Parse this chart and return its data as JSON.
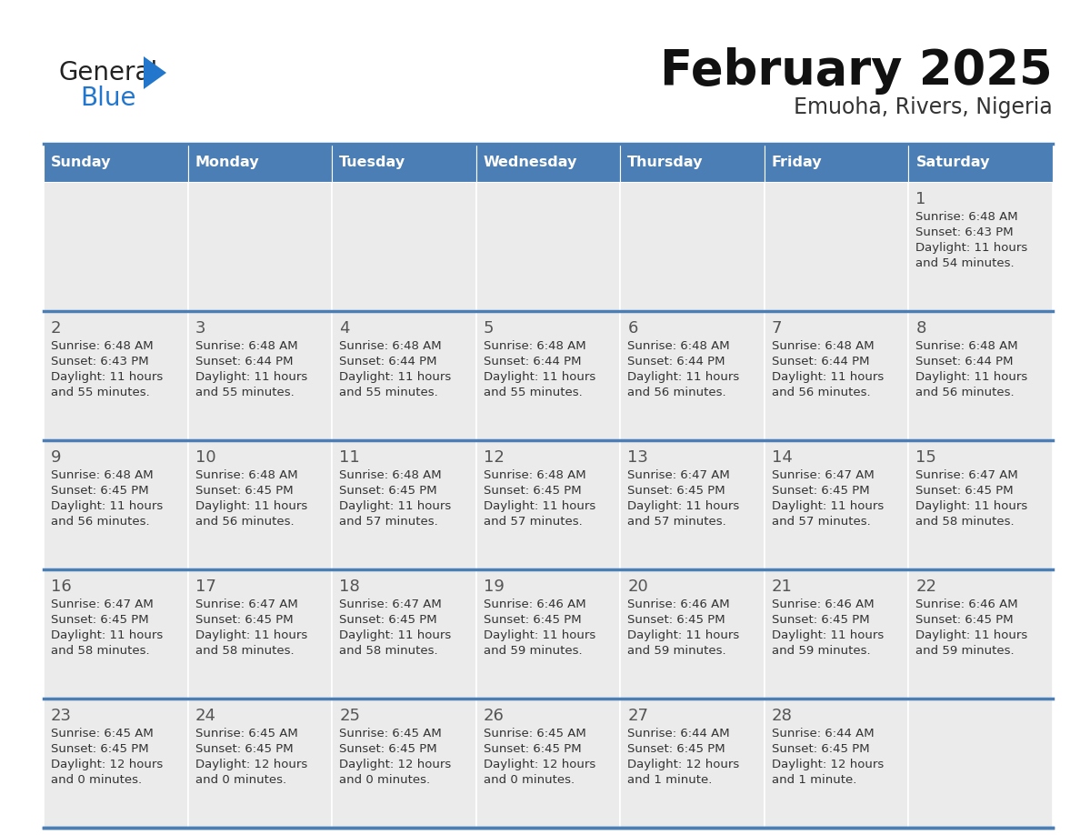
{
  "title": "February 2025",
  "subtitle": "Emuoha, Rivers, Nigeria",
  "days_of_week": [
    "Sunday",
    "Monday",
    "Tuesday",
    "Wednesday",
    "Thursday",
    "Friday",
    "Saturday"
  ],
  "header_bg": "#4a7eb5",
  "header_text": "#ffffff",
  "cell_bg": "#ebebeb",
  "day_number_color": "#555555",
  "text_color": "#333333",
  "line_color": "#4a7eb5",
  "logo_general_color": "#222222",
  "logo_blue_color": "#2277cc",
  "logo_triangle_color": "#2277cc",
  "title_color": "#111111",
  "subtitle_color": "#333333",
  "calendar_data": [
    [
      null,
      null,
      null,
      null,
      null,
      null,
      {
        "day": 1,
        "sunrise": "6:48 AM",
        "sunset": "6:43 PM",
        "daylight": "11 hours",
        "daylight2": "and 54 minutes."
      }
    ],
    [
      {
        "day": 2,
        "sunrise": "6:48 AM",
        "sunset": "6:43 PM",
        "daylight": "11 hours",
        "daylight2": "and 55 minutes."
      },
      {
        "day": 3,
        "sunrise": "6:48 AM",
        "sunset": "6:44 PM",
        "daylight": "11 hours",
        "daylight2": "and 55 minutes."
      },
      {
        "day": 4,
        "sunrise": "6:48 AM",
        "sunset": "6:44 PM",
        "daylight": "11 hours",
        "daylight2": "and 55 minutes."
      },
      {
        "day": 5,
        "sunrise": "6:48 AM",
        "sunset": "6:44 PM",
        "daylight": "11 hours",
        "daylight2": "and 55 minutes."
      },
      {
        "day": 6,
        "sunrise": "6:48 AM",
        "sunset": "6:44 PM",
        "daylight": "11 hours",
        "daylight2": "and 56 minutes."
      },
      {
        "day": 7,
        "sunrise": "6:48 AM",
        "sunset": "6:44 PM",
        "daylight": "11 hours",
        "daylight2": "and 56 minutes."
      },
      {
        "day": 8,
        "sunrise": "6:48 AM",
        "sunset": "6:44 PM",
        "daylight": "11 hours",
        "daylight2": "and 56 minutes."
      }
    ],
    [
      {
        "day": 9,
        "sunrise": "6:48 AM",
        "sunset": "6:45 PM",
        "daylight": "11 hours",
        "daylight2": "and 56 minutes."
      },
      {
        "day": 10,
        "sunrise": "6:48 AM",
        "sunset": "6:45 PM",
        "daylight": "11 hours",
        "daylight2": "and 56 minutes."
      },
      {
        "day": 11,
        "sunrise": "6:48 AM",
        "sunset": "6:45 PM",
        "daylight": "11 hours",
        "daylight2": "and 57 minutes."
      },
      {
        "day": 12,
        "sunrise": "6:48 AM",
        "sunset": "6:45 PM",
        "daylight": "11 hours",
        "daylight2": "and 57 minutes."
      },
      {
        "day": 13,
        "sunrise": "6:47 AM",
        "sunset": "6:45 PM",
        "daylight": "11 hours",
        "daylight2": "and 57 minutes."
      },
      {
        "day": 14,
        "sunrise": "6:47 AM",
        "sunset": "6:45 PM",
        "daylight": "11 hours",
        "daylight2": "and 57 minutes."
      },
      {
        "day": 15,
        "sunrise": "6:47 AM",
        "sunset": "6:45 PM",
        "daylight": "11 hours",
        "daylight2": "and 58 minutes."
      }
    ],
    [
      {
        "day": 16,
        "sunrise": "6:47 AM",
        "sunset": "6:45 PM",
        "daylight": "11 hours",
        "daylight2": "and 58 minutes."
      },
      {
        "day": 17,
        "sunrise": "6:47 AM",
        "sunset": "6:45 PM",
        "daylight": "11 hours",
        "daylight2": "and 58 minutes."
      },
      {
        "day": 18,
        "sunrise": "6:47 AM",
        "sunset": "6:45 PM",
        "daylight": "11 hours",
        "daylight2": "and 58 minutes."
      },
      {
        "day": 19,
        "sunrise": "6:46 AM",
        "sunset": "6:45 PM",
        "daylight": "11 hours",
        "daylight2": "and 59 minutes."
      },
      {
        "day": 20,
        "sunrise": "6:46 AM",
        "sunset": "6:45 PM",
        "daylight": "11 hours",
        "daylight2": "and 59 minutes."
      },
      {
        "day": 21,
        "sunrise": "6:46 AM",
        "sunset": "6:45 PM",
        "daylight": "11 hours",
        "daylight2": "and 59 minutes."
      },
      {
        "day": 22,
        "sunrise": "6:46 AM",
        "sunset": "6:45 PM",
        "daylight": "11 hours",
        "daylight2": "and 59 minutes."
      }
    ],
    [
      {
        "day": 23,
        "sunrise": "6:45 AM",
        "sunset": "6:45 PM",
        "daylight": "12 hours",
        "daylight2": "and 0 minutes."
      },
      {
        "day": 24,
        "sunrise": "6:45 AM",
        "sunset": "6:45 PM",
        "daylight": "12 hours",
        "daylight2": "and 0 minutes."
      },
      {
        "day": 25,
        "sunrise": "6:45 AM",
        "sunset": "6:45 PM",
        "daylight": "12 hours",
        "daylight2": "and 0 minutes."
      },
      {
        "day": 26,
        "sunrise": "6:45 AM",
        "sunset": "6:45 PM",
        "daylight": "12 hours",
        "daylight2": "and 0 minutes."
      },
      {
        "day": 27,
        "sunrise": "6:44 AM",
        "sunset": "6:45 PM",
        "daylight": "12 hours",
        "daylight2": "and 1 minute."
      },
      {
        "day": 28,
        "sunrise": "6:44 AM",
        "sunset": "6:45 PM",
        "daylight": "12 hours",
        "daylight2": "and 1 minute."
      },
      null
    ]
  ]
}
